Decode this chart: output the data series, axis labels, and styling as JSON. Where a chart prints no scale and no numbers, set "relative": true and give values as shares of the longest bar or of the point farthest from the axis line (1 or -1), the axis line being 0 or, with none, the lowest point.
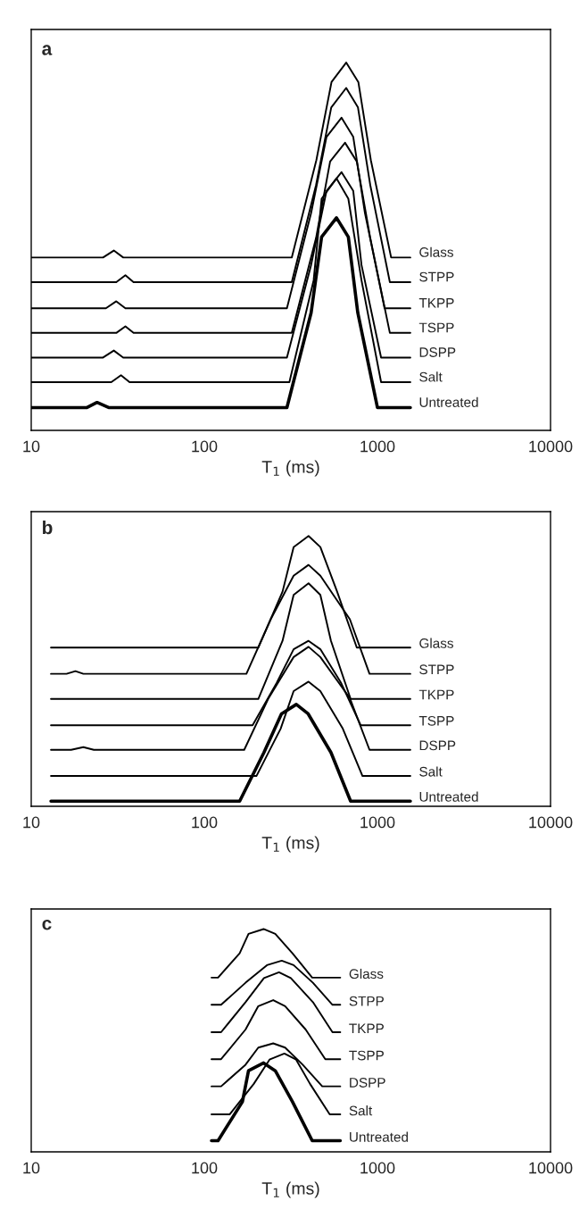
{
  "chart_data": [
    {
      "type": "line",
      "title": "a",
      "xlabel": "T$_{1}$ (ms)",
      "relative": true,
      "log": "x",
      "xlim": [
        10,
        10000
      ],
      "xticks": [
        10,
        100,
        1000,
        10000
      ],
      "series": [
        {
          "name": "Glass",
          "color": "#000000",
          "x": [
            10,
            26,
            30,
            34,
            320,
            444,
            543,
            660,
            776,
            916,
            1200,
            1550
          ],
          "values": [
            0.47,
            0.47,
            0.489,
            0.47,
            0.47,
            0.735,
            0.947,
            1,
            0.947,
            0.735,
            0.47,
            0.47
          ]
        },
        {
          "name": "STPP",
          "color": "#000000",
          "x": [
            10,
            31,
            35,
            39,
            320,
            442,
            541,
            660,
            772,
            909,
            1180,
            1550
          ],
          "values": [
            0.403,
            0.403,
            0.422,
            0.403,
            0.403,
            0.667,
            0.878,
            0.931,
            0.878,
            0.667,
            0.403,
            0.403
          ]
        },
        {
          "name": "TKPP",
          "color": "#000000",
          "x": [
            10,
            27,
            31,
            35,
            300,
            414,
            508,
            620,
            725,
            847,
            1100,
            1550
          ],
          "values": [
            0.332,
            0.332,
            0.351,
            0.332,
            0.332,
            0.591,
            0.798,
            0.85,
            0.798,
            0.591,
            0.332,
            0.332
          ]
        },
        {
          "name": "TSPP",
          "color": "#000000",
          "x": [
            10,
            31,
            35,
            39,
            320,
            442,
            533,
            650,
            760,
            909,
            1180,
            1550
          ],
          "values": [
            0.265,
            0.265,
            0.283,
            0.265,
            0.265,
            0.523,
            0.731,
            0.782,
            0.731,
            0.523,
            0.265,
            0.265
          ]
        },
        {
          "name": "DSPP",
          "color": "#000000",
          "x": [
            10,
            26,
            30,
            34,
            300,
            414,
            508,
            620,
            725,
            809,
            1050,
            1550
          ],
          "values": [
            0.198,
            0.198,
            0.217,
            0.198,
            0.198,
            0.45,
            0.651,
            0.702,
            0.651,
            0.45,
            0.198,
            0.198
          ]
        },
        {
          "name": "Salt",
          "color": "#000000",
          "x": [
            10,
            29,
            33,
            37,
            310,
            428,
            476,
            580,
            679,
            809,
            1050,
            1550
          ],
          "values": [
            0.131,
            0.131,
            0.15,
            0.131,
            0.131,
            0.408,
            0.63,
            0.685,
            0.63,
            0.408,
            0.131,
            0.131
          ]
        },
        {
          "name": "Untreated",
          "color": "#000000",
          "x": [
            10,
            21,
            24,
            28,
            300,
            414,
            476,
            580,
            679,
            770,
            1000,
            1550
          ],
          "values": [
            0.062,
            0.062,
            0.076,
            0.062,
            0.062,
            0.32,
            0.526,
            0.578,
            0.526,
            0.32,
            0.062,
            0.062
          ]
        }
      ]
    },
    {
      "type": "line",
      "title": "b",
      "xlabel": "T$_{1}$ (ms)",
      "relative": true,
      "log": "x",
      "xlim": [
        10,
        10000
      ],
      "xticks": [
        10,
        100,
        1000,
        10000
      ],
      "series": [
        {
          "name": "Glass",
          "color": "#000000",
          "x": [
            13,
            205,
            283,
            328,
            400,
            468,
            585,
            760,
            1550
          ],
          "values": [
            0.587,
            0.587,
            0.794,
            0.959,
            1,
            0.959,
            0.794,
            0.587,
            0.587
          ]
        },
        {
          "name": "STPP",
          "color": "#000000",
          "x": [
            13,
            16,
            18,
            20,
            175,
            242,
            328,
            400,
            468,
            693,
            900,
            1550
          ],
          "values": [
            0.49,
            0.49,
            0.5,
            0.49,
            0.49,
            0.692,
            0.853,
            0.893,
            0.853,
            0.692,
            0.49,
            0.49
          ]
        },
        {
          "name": "TKPP",
          "color": "#000000",
          "x": [
            13,
            205,
            283,
            328,
            400,
            468,
            539,
            700,
            1550
          ],
          "values": [
            0.397,
            0.397,
            0.612,
            0.782,
            0.825,
            0.782,
            0.612,
            0.397,
            0.397
          ]
        },
        {
          "name": "TSPP",
          "color": "#000000",
          "x": [
            13,
            190,
            262,
            328,
            400,
            468,
            616,
            800,
            1550
          ],
          "values": [
            0.3,
            0.3,
            0.457,
            0.581,
            0.612,
            0.581,
            0.457,
            0.3,
            0.3
          ]
        },
        {
          "name": "DSPP",
          "color": "#000000",
          "x": [
            13,
            17,
            20,
            23,
            170,
            235,
            328,
            400,
            468,
            693,
            900,
            1550
          ],
          "values": [
            0.209,
            0.209,
            0.219,
            0.209,
            0.209,
            0.4,
            0.552,
            0.59,
            0.552,
            0.4,
            0.209,
            0.209
          ]
        },
        {
          "name": "Salt",
          "color": "#000000",
          "x": [
            13,
            200,
            276,
            328,
            400,
            468,
            631,
            820,
            1550
          ],
          "values": [
            0.112,
            0.112,
            0.287,
            0.426,
            0.461,
            0.426,
            0.287,
            0.112,
            0.112
          ]
        },
        {
          "name": "Untreated",
          "color": "#000000",
          "x": [
            13,
            160,
            221,
            279,
            340,
            398,
            539,
            700,
            1550
          ],
          "values": [
            0.019,
            0.019,
            0.199,
            0.342,
            0.377,
            0.342,
            0.199,
            0.019,
            0.019
          ]
        }
      ]
    },
    {
      "type": "line",
      "title": "c",
      "xlabel": "T$_{1}$ (ms)",
      "relative": true,
      "log": "x",
      "xlim": [
        10,
        10000
      ],
      "xticks": [
        10,
        100,
        1000,
        10000
      ],
      "series": [
        {
          "name": "Glass",
          "color": "#000000",
          "x": [
            110,
            120,
            160,
            180,
            220,
            257,
            323,
            420,
            610
          ],
          "values": [
            0.782,
            0.782,
            0.891,
            0.978,
            1,
            0.978,
            0.891,
            0.782,
            0.782
          ]
        },
        {
          "name": "STPP",
          "color": "#000000",
          "x": [
            110,
            125,
            173,
            230,
            280,
            328,
            424,
            550,
            610
          ],
          "values": [
            0.66,
            0.66,
            0.759,
            0.838,
            0.858,
            0.838,
            0.759,
            0.66,
            0.66
          ]
        },
        {
          "name": "TKPP",
          "color": "#000000",
          "x": [
            110,
            125,
            173,
            221,
            270,
            316,
            424,
            550,
            610
          ],
          "values": [
            0.537,
            0.537,
            0.672,
            0.78,
            0.806,
            0.78,
            0.672,
            0.537,
            0.537
          ]
        },
        {
          "name": "TSPP",
          "color": "#000000",
          "x": [
            110,
            125,
            173,
            205,
            250,
            293,
            385,
            500,
            610
          ],
          "values": [
            0.416,
            0.416,
            0.549,
            0.654,
            0.681,
            0.654,
            0.549,
            0.416,
            0.416
          ]
        },
        {
          "name": "DSPP",
          "color": "#000000",
          "x": [
            110,
            125,
            173,
            205,
            250,
            293,
            370,
            480,
            610
          ],
          "values": [
            0.294,
            0.294,
            0.391,
            0.468,
            0.487,
            0.468,
            0.391,
            0.294,
            0.294
          ]
        },
        {
          "name": "Salt",
          "color": "#000000",
          "x": [
            110,
            140,
            193,
            238,
            290,
            339,
            408,
            530,
            610
          ],
          "values": [
            0.168,
            0.168,
            0.305,
            0.414,
            0.441,
            0.414,
            0.305,
            0.168,
            0.168
          ]
        },
        {
          "name": "Untreated",
          "color": "#000000",
          "x": [
            110,
            120,
            166,
            180,
            220,
            257,
            323,
            420,
            610
          ],
          "values": [
            0.05,
            0.05,
            0.225,
            0.364,
            0.399,
            0.364,
            0.225,
            0.05,
            0.05
          ]
        }
      ]
    }
  ]
}
